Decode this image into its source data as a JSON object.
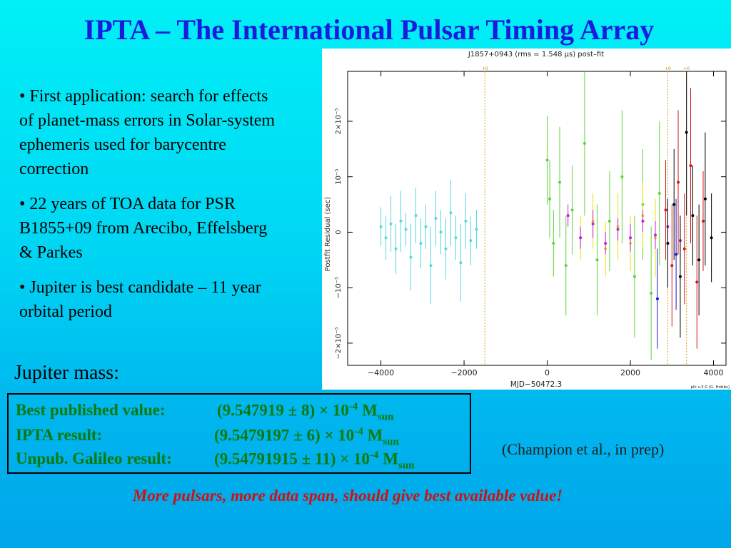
{
  "slide": {
    "title": "IPTA – The International Pulsar Timing Array",
    "bullets": [
      "• First application: search for effects of planet-mass errors in Solar-system ephemeris used for barycentre correction",
      "• 22 years of TOA data for PSR B1855+09 from Arecibo, Effelsberg & Parkes",
      "• Jupiter is best candidate – 11 year orbital period"
    ],
    "jupiter_label": "Jupiter mass:",
    "results": [
      {
        "label": "Best published value:",
        "value": "(9.547919 ± 8) × 10",
        "exp": "-4",
        "unit": "M",
        "sub": "sun"
      },
      {
        "label": "IPTA result:",
        "value": "(9.5479197 ± 6) × 10",
        "exp": "-4",
        "unit": "M",
        "sub": "sun"
      },
      {
        "label": "Unpub. Galileo result:",
        "value": "(9.54791915 ± 11) × 10",
        "exp": "-4",
        "unit": "M",
        "sub": "sun"
      }
    ],
    "citation": "(Champion et al., in prep)",
    "conclusion": "More pulsars, more data span, should give best available value!"
  },
  "chart_data": {
    "type": "scatter",
    "title": "J1857+0943 (rms = 1.548 μs) post–fit",
    "xlabel": "MJD−50472.3",
    "ylabel": "Postfit Residual (sec)",
    "xlim": [
      -4800,
      4300
    ],
    "ylim": [
      -2.4e-05,
      2.9e-05
    ],
    "x_ticks": [
      {
        "value": -4000,
        "label": "−4000"
      },
      {
        "value": -2000,
        "label": "−2000"
      },
      {
        "value": 0,
        "label": "0"
      },
      {
        "value": 2000,
        "label": "2000"
      },
      {
        "value": 4000,
        "label": "4000"
      }
    ],
    "y_ticks": [
      {
        "value": -2e-05,
        "label": "−2×10⁻⁵"
      },
      {
        "value": -1e-05,
        "label": "−10⁻⁵"
      },
      {
        "value": 0,
        "label": "0"
      },
      {
        "value": 1e-05,
        "label": "10⁻⁵"
      },
      {
        "value": 2e-05,
        "label": "2×10⁻⁵"
      }
    ],
    "vlines": [
      {
        "x": -1500,
        "label": "+0"
      },
      {
        "x": 2900,
        "label": "+0"
      },
      {
        "x": 3350,
        "label": "+0"
      }
    ],
    "footer_note": "plk v.3.0 (G. Hobbs)",
    "grid": false,
    "series_colors": {
      "cyan": "#5ad8e0",
      "green": "#5cd43a",
      "yellow": "#e4e400",
      "magenta": "#c020d8",
      "red": "#d01818",
      "black": "#000000",
      "blue": "#1818d0"
    },
    "series": [
      {
        "color": "cyan",
        "x": [
          -4000,
          -3880,
          -3760,
          -3640,
          -3520,
          -3400,
          -3280,
          -3160,
          -3040,
          -2920,
          -2800,
          -2680,
          -2560,
          -2440,
          -2320,
          -2200,
          -2080,
          -1960,
          -1840,
          -1700
        ],
        "y": [
          1e-06,
          -1e-06,
          1.5e-06,
          -3e-06,
          2e-06,
          5e-07,
          -4.5e-06,
          3e-06,
          -2e-06,
          1e-06,
          -6e-06,
          2.5e-06,
          0,
          -3e-06,
          3.5e-06,
          -1e-06,
          -5.5e-06,
          2e-06,
          -1.5e-06,
          5e-07
        ],
        "err": [
          3.5e-06,
          4e-06,
          5e-06,
          4.5e-06,
          5.5e-06,
          3e-06,
          6e-06,
          5e-06,
          4.5e-06,
          4e-06,
          7e-06,
          5e-06,
          4e-06,
          5.5e-06,
          6e-06,
          4e-06,
          7e-06,
          5e-06,
          4.5e-06,
          3.5e-06
        ]
      },
      {
        "color": "green",
        "x": [
          0,
          60,
          150,
          300,
          450,
          600,
          900,
          1200,
          1500,
          1800,
          2100,
          2300,
          2500,
          2700
        ],
        "y": [
          1.3e-05,
          6e-06,
          -2e-06,
          9e-06,
          -6e-06,
          4e-06,
          1.6e-05,
          -5e-06,
          2e-06,
          1e-05,
          -8e-06,
          5e-06,
          -1.1e-05,
          7e-06
        ],
        "err": [
          8e-06,
          7e-06,
          6e-06,
          1e-05,
          9e-06,
          8e-06,
          1.3e-05,
          1e-05,
          9e-06,
          1.2e-05,
          1.1e-05,
          1e-05,
          1.2e-05,
          1.3e-05
        ]
      },
      {
        "color": "yellow",
        "x": [
          800,
          1100,
          1400,
          1700,
          2000,
          2300,
          2600
        ],
        "y": [
          -1e-06,
          2e-06,
          -3e-06,
          1e-06,
          -2e-06,
          3e-06,
          -1e-06
        ],
        "err": [
          4e-06,
          5e-06,
          5e-06,
          6e-06,
          5e-06,
          6e-06,
          7e-06
        ]
      },
      {
        "color": "magenta",
        "x": [
          500,
          800,
          1100,
          1400,
          1700,
          2000,
          2300,
          2600,
          2900,
          3200
        ],
        "y": [
          3e-06,
          -1e-06,
          1.5e-06,
          -2e-06,
          5e-07,
          -1e-06,
          2e-06,
          -5e-07,
          1e-06,
          -1.5e-06
        ],
        "err": [
          2e-06,
          2e-06,
          2.5e-06,
          2e-06,
          2e-06,
          2.5e-06,
          2e-06,
          2.5e-06,
          2e-06,
          3e-06
        ]
      },
      {
        "color": "red",
        "x": [
          2850,
          3000,
          3150,
          3300,
          3450,
          3600,
          3750
        ],
        "y": [
          4e-06,
          -6e-06,
          9e-06,
          -3e-06,
          1.2e-05,
          -9e-06,
          2e-06
        ],
        "err": [
          9e-06,
          1.1e-05,
          1.3e-05,
          1e-05,
          1.4e-05,
          1.2e-05,
          9e-06
        ]
      },
      {
        "color": "black",
        "x": [
          2900,
          3050,
          3200,
          3350,
          3500,
          3650,
          3800,
          3950
        ],
        "y": [
          -2e-06,
          5e-06,
          -8e-06,
          1.8e-05,
          3e-06,
          -5e-06,
          6e-06,
          -1e-06
        ],
        "err": [
          8e-06,
          1e-05,
          1.1e-05,
          1.5e-05,
          9e-06,
          1e-05,
          1.2e-05,
          8e-06
        ]
      },
      {
        "color": "blue",
        "x": [
          2650,
          3100
        ],
        "y": [
          -1.2e-05,
          -4e-06
        ],
        "err": [
          9e-06,
          1e-05
        ]
      }
    ]
  }
}
